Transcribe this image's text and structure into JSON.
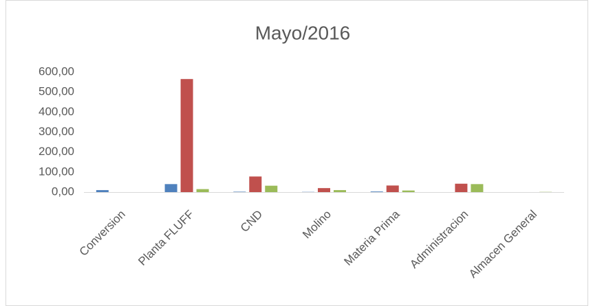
{
  "chart_data": {
    "type": "bar",
    "title": "Mayo/2016",
    "categories": [
      "Conversion",
      "Planta FLUFF",
      "CND",
      "Molino",
      "Materia Prima",
      "Administracion",
      "Almacen General"
    ],
    "series": [
      {
        "color": "#4f81bd",
        "values": [
          10,
          40,
          2,
          1,
          3,
          0,
          0
        ]
      },
      {
        "color": "#c0504d",
        "values": [
          0,
          565,
          78,
          20,
          33,
          42,
          0
        ]
      },
      {
        "color": "#9bbb59",
        "values": [
          0,
          15,
          32,
          10,
          8,
          40,
          1
        ]
      }
    ],
    "ylim": [
      0,
      600
    ],
    "yticks": [
      {
        "value": 0,
        "label": "0,00"
      },
      {
        "value": 100,
        "label": "100,00"
      },
      {
        "value": 200,
        "label": "200,00"
      },
      {
        "value": 300,
        "label": "300,00"
      },
      {
        "value": 400,
        "label": "400,00"
      },
      {
        "value": 500,
        "label": "500,00"
      },
      {
        "value": 600,
        "label": "600,00"
      }
    ],
    "grid": false
  }
}
